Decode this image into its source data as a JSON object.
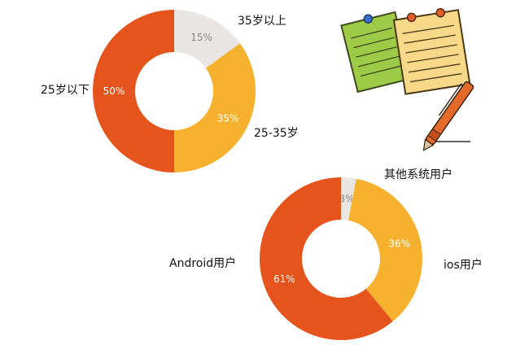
{
  "chart_data": [
    {
      "type": "pie",
      "style": "donut",
      "categories": [
        "35岁以上",
        "25-35岁",
        "25岁以下"
      ],
      "values": [
        15,
        35,
        50
      ],
      "value_labels": [
        "15%",
        "35%",
        "50%"
      ],
      "colors": [
        "#e9e6e3",
        "#f6b22f",
        "#e5541c"
      ]
    },
    {
      "type": "pie",
      "style": "donut",
      "categories": [
        "其他系统用户",
        "ios用户",
        "Android用户"
      ],
      "values": [
        3,
        36,
        61
      ],
      "value_labels": [
        "3%",
        "36%",
        "61%"
      ],
      "colors": [
        "#e9e6e3",
        "#f6b22f",
        "#e5541c"
      ]
    }
  ],
  "label_colors": {
    "on_light": "#888888",
    "on_dark": "#ffffff"
  },
  "icons": [
    "notepad-icon",
    "pen-icon"
  ]
}
